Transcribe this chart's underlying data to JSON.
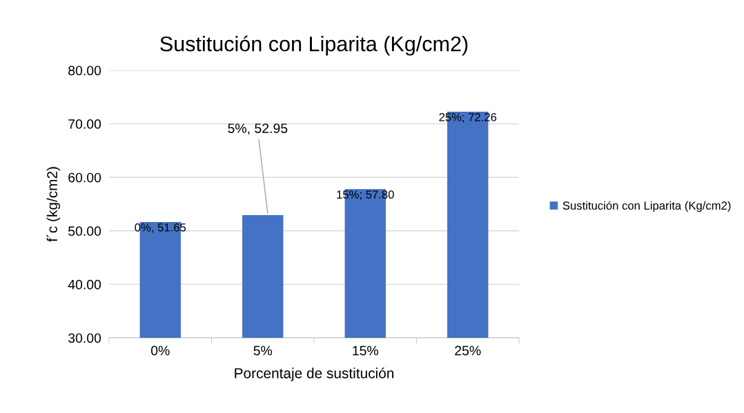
{
  "chart_data": {
    "type": "bar",
    "title": "Sustitución con Liparita (Kg/cm2)",
    "xlabel": "Porcentaje de sustitución",
    "ylabel": "f´c (kg/cm2)",
    "categories": [
      "0%",
      "5%",
      "15%",
      "25%"
    ],
    "series": [
      {
        "name": "Sustitución con Liparita (Kg/cm2)",
        "color": "#4472c4",
        "values": [
          51.65,
          52.95,
          57.8,
          72.26
        ],
        "value_labels": [
          "0%, 51.65",
          "5%, 52.95",
          "15%; 57.80",
          "25%; 72.26"
        ]
      }
    ],
    "ylim": [
      30,
      80
    ],
    "yticks": [
      {
        "value": 30,
        "label": "30.00"
      },
      {
        "value": 40,
        "label": "40.00"
      },
      {
        "value": 50,
        "label": "50.00"
      },
      {
        "value": 60,
        "label": "60.00"
      },
      {
        "value": 70,
        "label": "70.00"
      },
      {
        "value": 80,
        "label": "80.00"
      }
    ],
    "grid": "y",
    "legend": "right"
  }
}
